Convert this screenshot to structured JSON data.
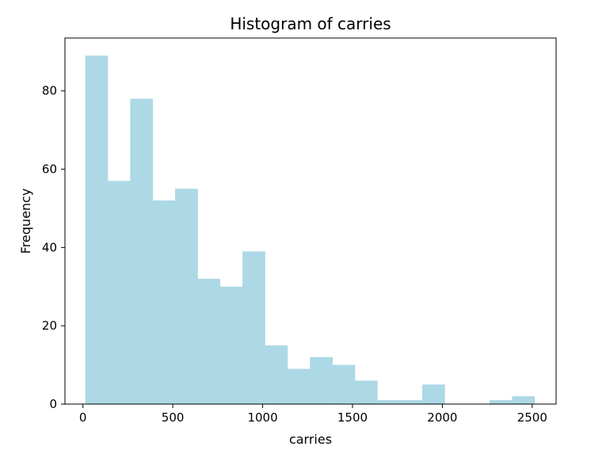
{
  "chart_data": {
    "type": "bar",
    "title": "Histogram of carries",
    "xlabel": "carries",
    "ylabel": "Frequency",
    "bar_color": "#add8e6",
    "xlim": [
      -100,
      2633
    ],
    "ylim": [
      0,
      93.5
    ],
    "xticks": [
      0,
      500,
      1000,
      1500,
      2000,
      2500
    ],
    "yticks": [
      0,
      20,
      40,
      60,
      80
    ],
    "bin_start": 13,
    "bin_width": 125,
    "values": [
      89,
      57,
      78,
      52,
      55,
      32,
      30,
      39,
      15,
      9,
      12,
      10,
      6,
      1,
      1,
      5,
      0,
      0,
      1,
      2
    ]
  }
}
